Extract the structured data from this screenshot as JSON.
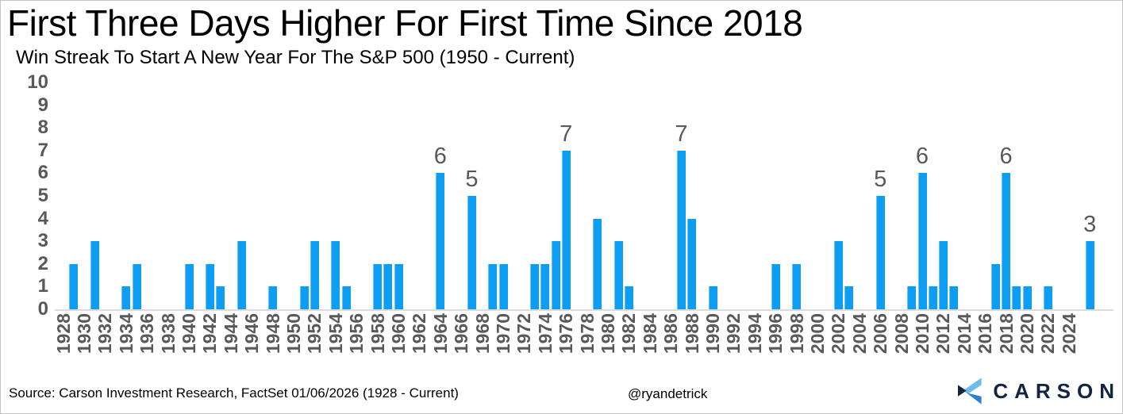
{
  "header": {
    "title": "First Three Days Higher For First Time Since 2018",
    "subtitle": "Win Streak To Start A New Year For The S&P 500 (1950 - Current)"
  },
  "footer": {
    "source": "Source: Carson Investment Research, FactSet 01/06/2026 (1928 - Current)",
    "handle": "@ryandetrick",
    "brand": "CARSON"
  },
  "colors": {
    "bar": "#0d9df2",
    "bar_edge": "#66c4f7",
    "axis_text": "#595959",
    "baseline": "#dcdcdc",
    "logo_navy": "#132441",
    "logo_light_blue": "#6fbce8",
    "logo_mid_blue": "#2f80cc"
  },
  "chart_data": {
    "type": "bar",
    "title": "First Three Days Higher For First Time Since 2018",
    "subtitle": "Win Streak To Start A New Year For The S&P 500 (1950 - Current)",
    "xlabel": "",
    "ylabel": "",
    "ylim": [
      0,
      10
    ],
    "y_ticks": [
      0,
      1,
      2,
      3,
      4,
      5,
      6,
      7,
      8,
      9,
      10
    ],
    "grid": false,
    "legend": null,
    "x_axis_years": {
      "start": 1928,
      "end": 2026
    },
    "x_tick_labels": [
      "1928",
      "1930",
      "1932",
      "1934",
      "1936",
      "1938",
      "1940",
      "1942",
      "1944",
      "1946",
      "1948",
      "1950",
      "1952",
      "1954",
      "1956",
      "1958",
      "1960",
      "1962",
      "1964",
      "1966",
      "1968",
      "1970",
      "1972",
      "1974",
      "1976",
      "1978",
      "1980",
      "1982",
      "1984",
      "1986",
      "1988",
      "1990",
      "1992",
      "1994",
      "1996",
      "1998",
      "2000",
      "2002",
      "2004",
      "2006",
      "2008",
      "2010",
      "2012",
      "2014",
      "2016",
      "2018",
      "2020",
      "2022",
      "2024"
    ],
    "points": [
      {
        "year": 1929,
        "value": 2
      },
      {
        "year": 1931,
        "value": 3
      },
      {
        "year": 1934,
        "value": 1
      },
      {
        "year": 1935,
        "value": 2
      },
      {
        "year": 1940,
        "value": 2
      },
      {
        "year": 1942,
        "value": 2
      },
      {
        "year": 1943,
        "value": 1
      },
      {
        "year": 1945,
        "value": 3
      },
      {
        "year": 1948,
        "value": 1
      },
      {
        "year": 1951,
        "value": 1
      },
      {
        "year": 1952,
        "value": 3
      },
      {
        "year": 1954,
        "value": 3
      },
      {
        "year": 1955,
        "value": 1
      },
      {
        "year": 1958,
        "value": 2
      },
      {
        "year": 1959,
        "value": 2
      },
      {
        "year": 1960,
        "value": 2
      },
      {
        "year": 1964,
        "value": 6
      },
      {
        "year": 1967,
        "value": 5
      },
      {
        "year": 1969,
        "value": 2
      },
      {
        "year": 1970,
        "value": 2
      },
      {
        "year": 1973,
        "value": 2
      },
      {
        "year": 1974,
        "value": 2
      },
      {
        "year": 1975,
        "value": 3
      },
      {
        "year": 1976,
        "value": 7
      },
      {
        "year": 1979,
        "value": 4
      },
      {
        "year": 1981,
        "value": 3
      },
      {
        "year": 1982,
        "value": 1
      },
      {
        "year": 1987,
        "value": 7
      },
      {
        "year": 1988,
        "value": 4
      },
      {
        "year": 1990,
        "value": 1
      },
      {
        "year": 1996,
        "value": 2
      },
      {
        "year": 1998,
        "value": 2
      },
      {
        "year": 2002,
        "value": 3
      },
      {
        "year": 2003,
        "value": 1
      },
      {
        "year": 2006,
        "value": 5
      },
      {
        "year": 2009,
        "value": 1
      },
      {
        "year": 2010,
        "value": 6
      },
      {
        "year": 2011,
        "value": 1
      },
      {
        "year": 2012,
        "value": 3
      },
      {
        "year": 2013,
        "value": 1
      },
      {
        "year": 2017,
        "value": 2
      },
      {
        "year": 2018,
        "value": 6
      },
      {
        "year": 2019,
        "value": 1
      },
      {
        "year": 2020,
        "value": 1
      },
      {
        "year": 2022,
        "value": 1
      },
      {
        "year": 2026,
        "value": 3
      }
    ],
    "labeled_years": [
      1964,
      1967,
      1976,
      1987,
      2006,
      2010,
      2018,
      2026
    ]
  }
}
